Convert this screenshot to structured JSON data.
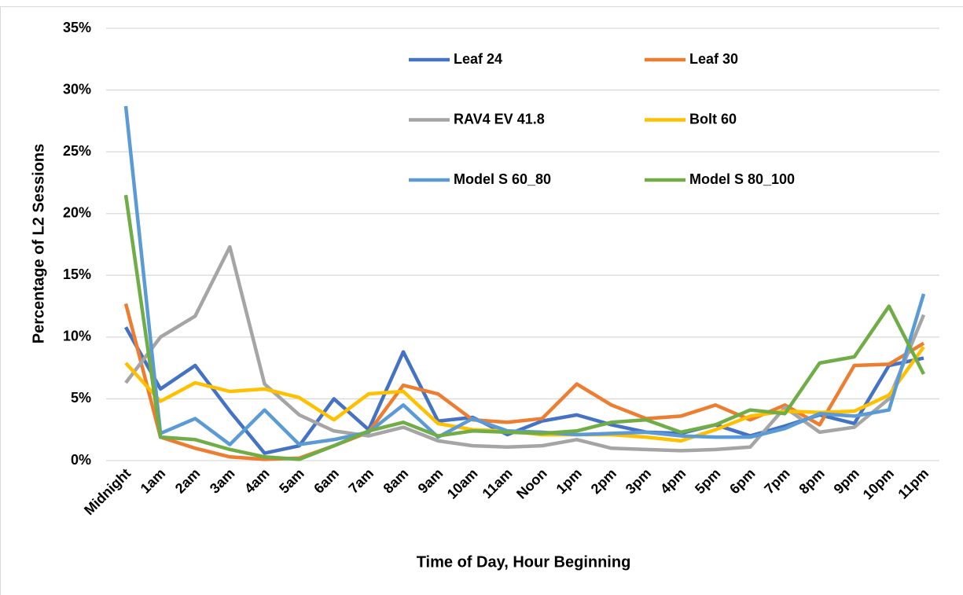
{
  "chart_data": {
    "type": "line",
    "xlabel": "Time of Day, Hour Beginning",
    "ylabel": "Percentage of L2 Sessions",
    "categories": [
      "Midnight",
      "1am",
      "2am",
      "3am",
      "4am",
      "5am",
      "6am",
      "7am",
      "8am",
      "9am",
      "10am",
      "11am",
      "Noon",
      "1pm",
      "2pm",
      "3pm",
      "4pm",
      "5pm",
      "6pm",
      "7pm",
      "8pm",
      "9pm",
      "10pm",
      "11pm"
    ],
    "series": [
      {
        "name": "Leaf 24",
        "color": "#4472c4",
        "values": [
          10.8,
          5.8,
          7.7,
          4.0,
          0.6,
          1.2,
          5.0,
          2.5,
          8.8,
          3.2,
          3.5,
          2.1,
          3.2,
          3.7,
          2.9,
          2.3,
          2.2,
          2.9,
          2.0,
          2.8,
          3.7,
          3.0,
          7.7,
          8.3
        ]
      },
      {
        "name": "Leaf 30",
        "color": "#ed7d31",
        "values": [
          12.7,
          1.9,
          1.0,
          0.3,
          0.1,
          0.2,
          1.2,
          2.3,
          6.1,
          5.4,
          3.3,
          3.1,
          3.4,
          6.2,
          4.5,
          3.4,
          3.6,
          4.5,
          3.3,
          4.5,
          2.9,
          7.7,
          7.8,
          9.5
        ]
      },
      {
        "name": "RAV4 EV 41.8",
        "color": "#a5a5a5",
        "values": [
          6.3,
          10.0,
          11.7,
          17.3,
          6.2,
          3.7,
          2.4,
          2.0,
          2.7,
          1.6,
          1.2,
          1.1,
          1.2,
          1.7,
          1.0,
          0.9,
          0.8,
          0.9,
          1.1,
          4.3,
          2.3,
          2.7,
          5.0,
          11.8
        ]
      },
      {
        "name": "Bolt 60",
        "color": "#ffc000",
        "values": [
          7.9,
          4.8,
          6.3,
          5.6,
          5.8,
          5.1,
          3.3,
          5.4,
          5.6,
          3.0,
          2.5,
          2.4,
          2.1,
          2.1,
          2.1,
          1.9,
          1.6,
          2.5,
          3.6,
          4.0,
          3.9,
          4.0,
          5.3,
          9.2
        ]
      },
      {
        "name": "Model S 60_80",
        "color": "#5b9bd5",
        "values": [
          28.7,
          2.2,
          3.4,
          1.3,
          4.1,
          1.3,
          1.7,
          2.3,
          4.5,
          1.9,
          3.4,
          2.4,
          2.3,
          2.1,
          2.2,
          2.3,
          2.0,
          1.9,
          1.9,
          2.6,
          3.8,
          3.6,
          4.1,
          13.5
        ]
      },
      {
        "name": "Model S 80_100",
        "color": "#70ad47",
        "values": [
          21.5,
          1.9,
          1.7,
          0.9,
          0.3,
          0.1,
          1.2,
          2.4,
          3.1,
          2.0,
          2.4,
          2.3,
          2.2,
          2.4,
          3.1,
          3.3,
          2.3,
          2.9,
          4.1,
          3.8,
          7.9,
          8.4,
          12.5,
          7.0
        ]
      }
    ],
    "ylim": [
      0,
      35
    ],
    "yticks": [
      {
        "value": 0,
        "label": "0%"
      },
      {
        "value": 5,
        "label": "5%"
      },
      {
        "value": 10,
        "label": "10%"
      },
      {
        "value": 15,
        "label": "15%"
      },
      {
        "value": 20,
        "label": "20%"
      },
      {
        "value": 25,
        "label": "25%"
      },
      {
        "value": 30,
        "label": "30%"
      },
      {
        "value": 35,
        "label": "35%"
      }
    ],
    "grid": true
  }
}
